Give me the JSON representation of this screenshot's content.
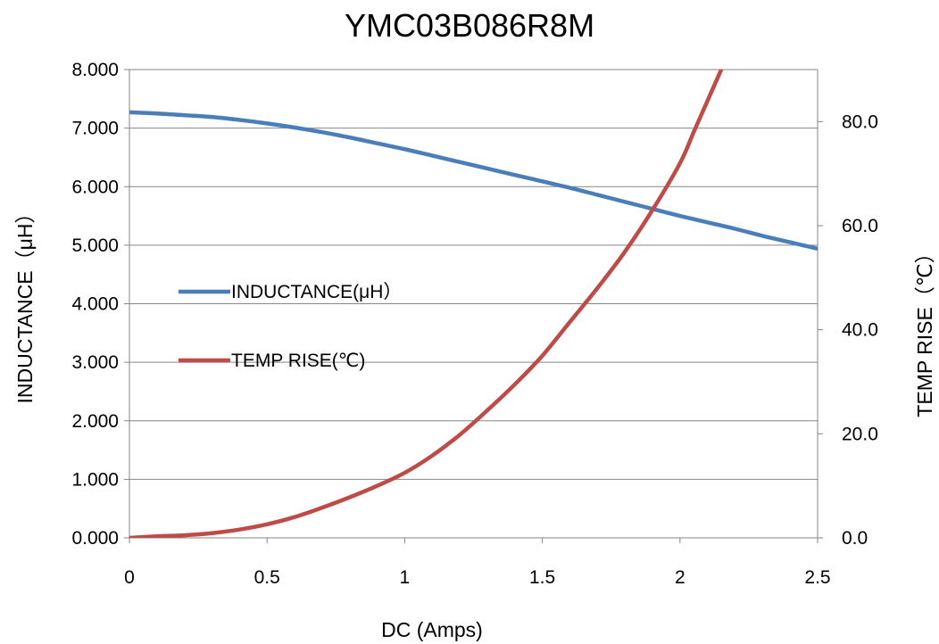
{
  "chart_data": {
    "type": "line",
    "title": "YMC03B086R8M",
    "xlabel": "DC (Amps)",
    "ylabel": "INDUCTANCE（μH）",
    "y2label": "TEMP RISE（℃）",
    "xlim": [
      0,
      2.5
    ],
    "ylim": [
      0,
      8
    ],
    "y2lim": [
      0,
      90
    ],
    "x_ticks": [
      "0",
      "0.5",
      "1",
      "1.5",
      "2",
      "2.5"
    ],
    "y_ticks": [
      "0.000",
      "1.000",
      "2.000",
      "3.000",
      "4.000",
      "5.000",
      "6.000",
      "7.000",
      "8.000"
    ],
    "y2_ticks": [
      "0.0",
      "20.0",
      "40.0",
      "60.0",
      "80.0"
    ],
    "grid": true,
    "legend_position": "center-left",
    "series": [
      {
        "name": "INDUCTANCE(μH）",
        "axis": "left",
        "color": "#4a7ebb",
        "x": [
          0,
          0.1,
          0.2,
          0.3,
          0.4,
          0.5,
          0.6,
          0.7,
          0.8,
          0.9,
          1.0,
          1.1,
          1.2,
          1.3,
          1.4,
          1.5,
          1.6,
          1.7,
          1.8,
          1.9,
          2.0,
          2.1,
          2.2,
          2.3,
          2.4,
          2.5
        ],
        "values": [
          7.27,
          7.25,
          7.22,
          7.19,
          7.14,
          7.08,
          7.01,
          6.93,
          6.84,
          6.74,
          6.64,
          6.53,
          6.42,
          6.31,
          6.2,
          6.09,
          5.98,
          5.86,
          5.74,
          5.62,
          5.5,
          5.39,
          5.28,
          5.16,
          5.05,
          4.94
        ]
      },
      {
        "name": "TEMP RISE(℃)",
        "axis": "right",
        "color": "#be4b48",
        "x": [
          0,
          0.1,
          0.2,
          0.3,
          0.4,
          0.5,
          0.6,
          0.7,
          0.8,
          0.9,
          1.0,
          1.1,
          1.2,
          1.3,
          1.4,
          1.5,
          1.6,
          1.7,
          1.8,
          1.9,
          2.0,
          2.05,
          2.1,
          2.15
        ],
        "values": [
          0,
          0.3,
          0.5,
          0.9,
          1.6,
          2.6,
          4.0,
          5.8,
          7.8,
          10.0,
          12.5,
          15.8,
          19.8,
          24.5,
          29.5,
          35.0,
          41.5,
          48.0,
          55.0,
          63.0,
          72.0,
          78.0,
          84.0,
          90.0
        ]
      }
    ]
  }
}
